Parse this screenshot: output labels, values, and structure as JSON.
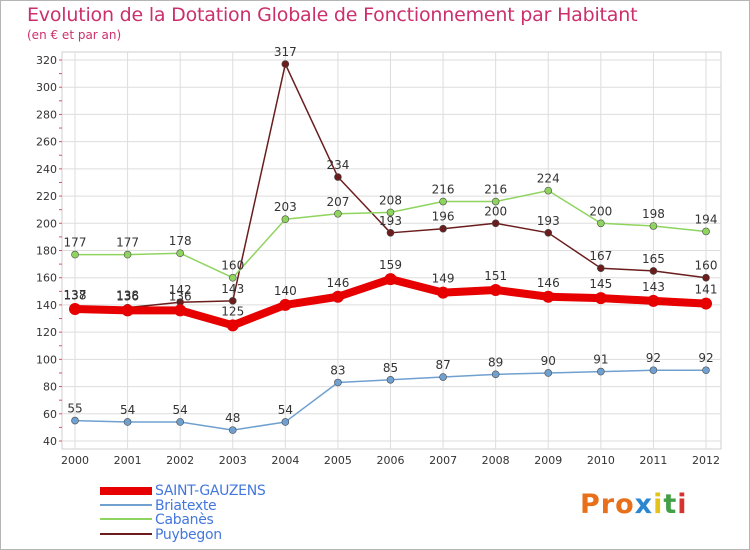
{
  "header": {
    "title": "Evolution de la Dotation Globale de Fonctionnement par Habitant",
    "subtitle": "(en € et par an)"
  },
  "chart_data": {
    "type": "line",
    "title": "Evolution de la Dotation Globale de Fonctionnement par Habitant",
    "subtitle": "(en € et par an)",
    "x": [
      "2000",
      "2001",
      "2002",
      "2003",
      "2004",
      "2005",
      "2006",
      "2007",
      "2008",
      "2009",
      "2010",
      "2011",
      "2012"
    ],
    "y_ticks": [
      40,
      60,
      80,
      100,
      120,
      140,
      160,
      180,
      200,
      220,
      240,
      260,
      280,
      300,
      320
    ],
    "ylim": [
      40,
      320
    ],
    "grid": true,
    "series": [
      {
        "name": "Puybegon",
        "color": "#6b1d1d",
        "emphasis": false,
        "values": [
          138,
          138,
          142,
          143,
          317,
          234,
          193,
          196,
          200,
          193,
          167,
          165,
          160
        ],
        "labels": [
          "138",
          "138",
          "142",
          "143",
          "317",
          "234",
          "193",
          "196",
          "200",
          "193",
          "167",
          "165",
          "160"
        ]
      },
      {
        "name": "Cabanès",
        "color": "#8fd45f",
        "emphasis": false,
        "values": [
          177,
          177,
          178,
          160,
          203,
          207,
          208,
          216,
          216,
          224,
          200,
          198,
          194
        ],
        "labels": [
          "177",
          "177",
          "178",
          "160",
          "203",
          "207",
          "208",
          "216",
          "216",
          "224",
          "200",
          "198",
          "194"
        ]
      },
      {
        "name": "Briatexte",
        "color": "#6fa0cf",
        "emphasis": false,
        "values": [
          55,
          54,
          54,
          48,
          54,
          83,
          85,
          87,
          89,
          90,
          91,
          92,
          92
        ],
        "labels": [
          "55",
          "54",
          "54",
          "48",
          "54",
          "83",
          "85",
          "87",
          "89",
          "90",
          "91",
          "92",
          "92"
        ]
      },
      {
        "name": "SAINT-GAUZENS",
        "color": "#e60000",
        "emphasis": true,
        "values": [
          137,
          136,
          136,
          125,
          140,
          146,
          159,
          149,
          151,
          146,
          145,
          143,
          141
        ],
        "labels": [
          "137",
          "136",
          "136",
          "125",
          "140",
          "146",
          "159",
          "149",
          "151",
          "146",
          "145",
          "143",
          "141"
        ]
      }
    ]
  },
  "legend": {
    "items": [
      {
        "label": "SAINT-GAUZENS",
        "color": "#e60000"
      },
      {
        "label": "Briatexte",
        "color": "#6fa0cf"
      },
      {
        "label": "Cabanès",
        "color": "#8fd45f"
      },
      {
        "label": "Puybegon",
        "color": "#6b1d1d"
      }
    ]
  },
  "logo": {
    "p1": "Pro",
    "p2": "x",
    "p3": "i",
    "p4": "t",
    "p5": "i"
  }
}
